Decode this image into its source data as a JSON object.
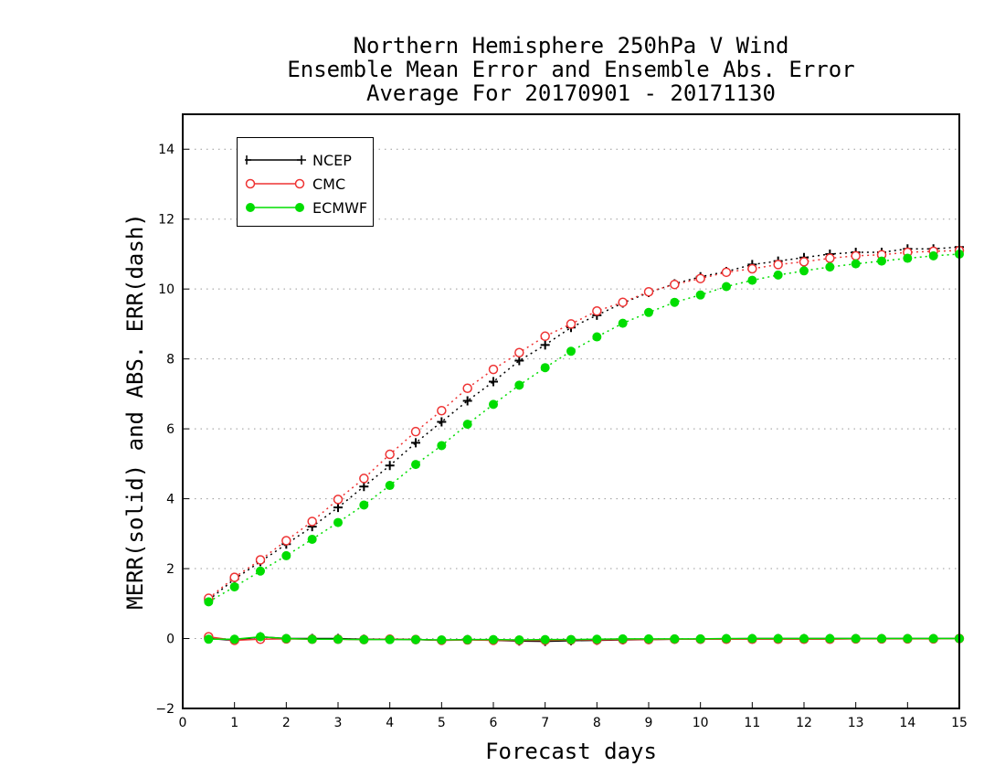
{
  "chart_data": {
    "type": "line",
    "title": [
      "Northern Hemisphere 250hPa V Wind",
      "Ensemble Mean Error and Ensemble Abs. Error",
      "Average For 20170901 - 20171130"
    ],
    "xlabel": "Forecast days",
    "ylabel": "MERR(solid) and ABS. ERR(dash)",
    "xlim": [
      0,
      15
    ],
    "ylim": [
      -2,
      15
    ],
    "xticks": [
      0,
      1,
      2,
      3,
      4,
      5,
      6,
      7,
      8,
      9,
      10,
      11,
      12,
      13,
      14,
      15
    ],
    "yticks": [
      -2,
      0,
      2,
      4,
      6,
      8,
      10,
      12,
      14
    ],
    "grid": "horizontal dotted",
    "legend_position": "top-left",
    "x": [
      0.5,
      1,
      1.5,
      2,
      2.5,
      3,
      3.5,
      4,
      4.5,
      5,
      5.5,
      6,
      6.5,
      7,
      7.5,
      8,
      8.5,
      9,
      9.5,
      10,
      10.5,
      11,
      11.5,
      12,
      12.5,
      13,
      13.5,
      14,
      14.5,
      15
    ],
    "series": [
      {
        "name": "NCEP",
        "color": "#000000",
        "marker": "plus",
        "abs_error": [
          1.1,
          1.7,
          2.2,
          2.7,
          3.2,
          3.75,
          4.35,
          4.95,
          5.6,
          6.2,
          6.8,
          7.35,
          7.95,
          8.4,
          8.9,
          9.25,
          9.6,
          9.9,
          10.15,
          10.35,
          10.5,
          10.7,
          10.8,
          10.9,
          11.0,
          11.05,
          11.05,
          11.15,
          11.15,
          11.2
        ],
        "mean_error": [
          0.0,
          -0.05,
          0.05,
          0.0,
          0.0,
          0.0,
          -0.02,
          -0.02,
          -0.03,
          -0.05,
          -0.03,
          -0.05,
          -0.07,
          -0.08,
          -0.06,
          -0.05,
          -0.04,
          -0.03,
          -0.02,
          -0.02,
          -0.01,
          0.0,
          0.0,
          0.0,
          0.0,
          0.0,
          0.0,
          0.0,
          0.0,
          0.0
        ]
      },
      {
        "name": "CMC",
        "color": "#ee3333",
        "marker": "open-circle",
        "abs_error": [
          1.15,
          1.75,
          2.25,
          2.8,
          3.35,
          3.98,
          4.58,
          5.27,
          5.92,
          6.52,
          7.16,
          7.7,
          8.18,
          8.65,
          9.0,
          9.37,
          9.62,
          9.92,
          10.13,
          10.3,
          10.48,
          10.58,
          10.7,
          10.78,
          10.88,
          10.95,
          10.98,
          11.05,
          11.08,
          11.1
        ],
        "mean_error": [
          0.05,
          -0.05,
          -0.02,
          -0.01,
          -0.02,
          -0.02,
          -0.03,
          -0.02,
          -0.03,
          -0.05,
          -0.04,
          -0.05,
          -0.05,
          -0.05,
          -0.04,
          -0.04,
          -0.03,
          -0.03,
          -0.02,
          -0.02,
          -0.02,
          -0.02,
          -0.02,
          -0.02,
          -0.02,
          -0.01,
          -0.01,
          -0.01,
          -0.01,
          0.0
        ]
      },
      {
        "name": "ECMWF",
        "color": "#00dd00",
        "marker": "filled-circle",
        "abs_error": [
          1.05,
          1.48,
          1.93,
          2.37,
          2.84,
          3.32,
          3.82,
          4.38,
          4.98,
          5.52,
          6.13,
          6.7,
          7.25,
          7.75,
          8.22,
          8.63,
          9.02,
          9.33,
          9.62,
          9.83,
          10.07,
          10.25,
          10.4,
          10.52,
          10.63,
          10.72,
          10.8,
          10.88,
          10.95,
          11.0
        ],
        "mean_error": [
          -0.02,
          -0.02,
          0.05,
          0.0,
          -0.02,
          -0.02,
          -0.03,
          -0.03,
          -0.03,
          -0.04,
          -0.03,
          -0.03,
          -0.04,
          -0.03,
          -0.03,
          -0.02,
          -0.01,
          -0.01,
          -0.01,
          -0.01,
          0.0,
          0.0,
          0.0,
          0.0,
          0.0,
          0.0,
          0.0,
          0.0,
          0.0,
          0.0
        ]
      }
    ]
  }
}
